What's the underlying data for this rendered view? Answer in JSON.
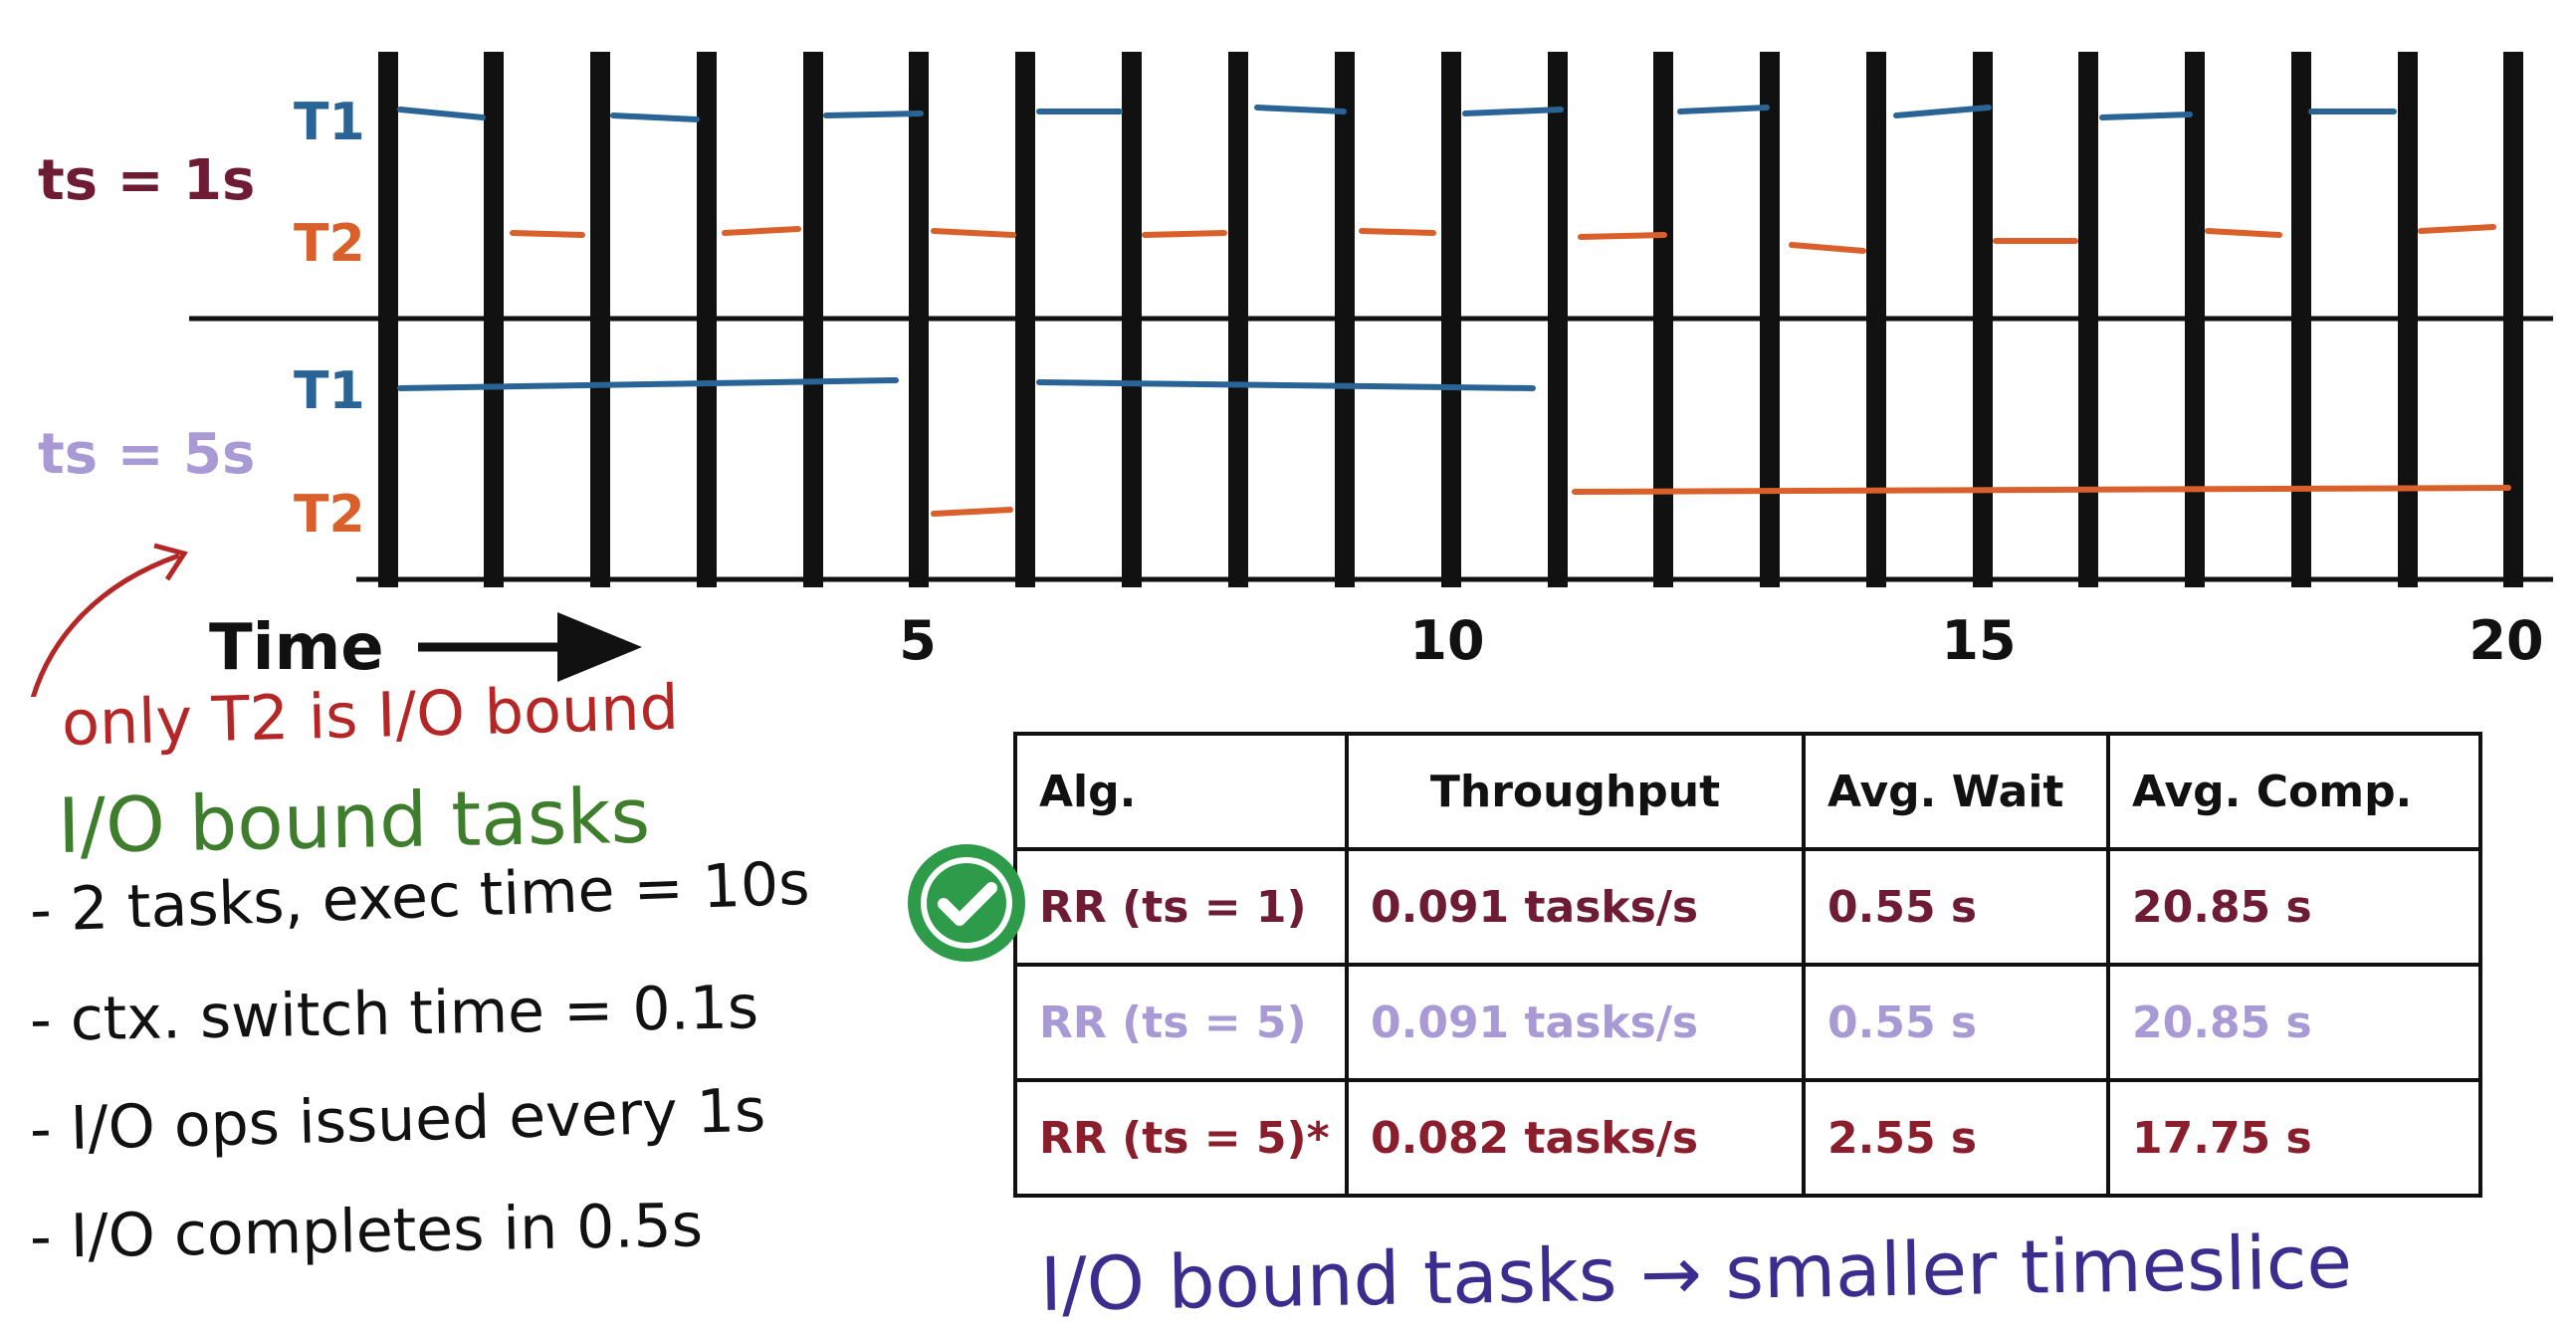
{
  "colors": {
    "t1": "#2a6496",
    "t2": "#d9602b",
    "ts1_label": "#6e1b34",
    "ts5_label": "#a99ad6",
    "note_red": "#b52626",
    "note_green": "#3e7d2c",
    "note_purple": "#3b2d8e",
    "check_green": "#2e9b4b"
  },
  "icons": [
    "curved-arrow-icon",
    "right-arrow-icon",
    "checkmark-icon"
  ],
  "timeline": {
    "panel_top": {
      "label": "ts = 1s",
      "task1": "T1",
      "task2": "T2"
    },
    "panel_bottom": {
      "label": "ts = 5s",
      "task1": "T1",
      "task2": "T2"
    },
    "axis_label": "Time",
    "ticks": [
      "5",
      "10",
      "15",
      "20"
    ]
  },
  "notes": {
    "only_t2": "only T2 is I/O bound",
    "heading": "I/O bound tasks",
    "bullets": [
      "- 2 tasks, exec time = 10s",
      "- ctx. switch time = 0.1s",
      "- I/O ops issued every 1s",
      "- I/O completes in 0.5s"
    ],
    "conclusion": "I/O bound tasks  →  smaller timeslice"
  },
  "table": {
    "headers": [
      "Alg.",
      "Throughput",
      "Avg. Wait",
      "Avg. Comp."
    ],
    "rows": [
      [
        "RR (ts = 1)",
        "0.091 tasks/s",
        "0.55 s",
        "20.85 s"
      ],
      [
        "RR (ts = 5)",
        "0.091 tasks/s",
        "0.55 s",
        "20.85 s"
      ],
      [
        "RR (ts = 5)*",
        "0.082 tasks/s",
        "2.55 s",
        "17.75 s"
      ]
    ]
  }
}
